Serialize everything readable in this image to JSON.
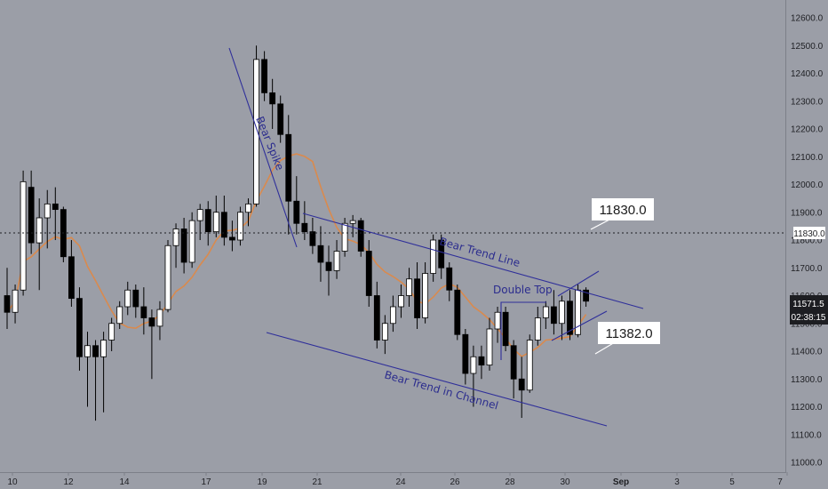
{
  "chart_data": {
    "type": "candlestick",
    "y_axis": {
      "range": [
        11000,
        12650
      ],
      "ticks": [
        "11000.0",
        "11100.0",
        "11200.0",
        "11300.0",
        "11400.0",
        "11500.0",
        "11600.0",
        "11700.0",
        "11800.0",
        "11900.0",
        "12000.0",
        "12100.0",
        "12200.0",
        "12300.0",
        "12400.0",
        "12500.0",
        "12600.0"
      ]
    },
    "x_axis": {
      "ticks": [
        "10",
        "12",
        "14",
        "17",
        "19",
        "21",
        "24",
        "26",
        "28",
        "30",
        "Sep",
        "3",
        "5",
        "7"
      ]
    },
    "grid": false,
    "moving_average_color": "#d98a4e",
    "candle_up_color": "#ffffff",
    "candle_down_color": "#000000",
    "candles": [
      [
        11600,
        11700,
        11480,
        11540
      ],
      [
        11540,
        11640,
        11500,
        11620
      ],
      [
        11620,
        12050,
        11600,
        12010
      ],
      [
        11990,
        12050,
        11750,
        11790
      ],
      [
        11790,
        11950,
        11620,
        11880
      ],
      [
        11880,
        11980,
        11770,
        11930
      ],
      [
        11930,
        11990,
        11800,
        11910
      ],
      [
        11910,
        11920,
        11720,
        11740
      ],
      [
        11740,
        11800,
        11560,
        11590
      ],
      [
        11590,
        11630,
        11330,
        11380
      ],
      [
        11380,
        11470,
        11200,
        11420
      ],
      [
        11420,
        11440,
        11150,
        11380
      ],
      [
        11380,
        11470,
        11180,
        11440
      ],
      [
        11440,
        11520,
        11400,
        11500
      ],
      [
        11500,
        11580,
        11480,
        11560
      ],
      [
        11560,
        11650,
        11530,
        11620
      ],
      [
        11620,
        11640,
        11520,
        11560
      ],
      [
        11560,
        11630,
        11460,
        11520
      ],
      [
        11520,
        11550,
        11300,
        11490
      ],
      [
        11490,
        11580,
        11440,
        11550
      ],
      [
        11550,
        11800,
        11540,
        11780
      ],
      [
        11780,
        11860,
        11700,
        11840
      ],
      [
        11840,
        11880,
        11680,
        11720
      ],
      [
        11720,
        11900,
        11700,
        11870
      ],
      [
        11870,
        11930,
        11800,
        11910
      ],
      [
        11910,
        11940,
        11780,
        11830
      ],
      [
        11830,
        11960,
        11810,
        11900
      ],
      [
        11900,
        11960,
        11780,
        11810
      ],
      [
        11810,
        11870,
        11760,
        11800
      ],
      [
        11800,
        11920,
        11780,
        11900
      ],
      [
        11900,
        11950,
        11850,
        11930
      ],
      [
        11930,
        12500,
        11920,
        12450
      ],
      [
        12450,
        12480,
        12300,
        12330
      ],
      [
        12330,
        12380,
        12200,
        12290
      ],
      [
        12290,
        12320,
        12150,
        12180
      ],
      [
        12180,
        12250,
        11820,
        11940
      ],
      [
        11940,
        12030,
        11820,
        11860
      ],
      [
        11860,
        11940,
        11800,
        11830
      ],
      [
        11830,
        11880,
        11750,
        11780
      ],
      [
        11780,
        11850,
        11650,
        11720
      ],
      [
        11720,
        11780,
        11600,
        11690
      ],
      [
        11690,
        11800,
        11660,
        11760
      ],
      [
        11760,
        11880,
        11740,
        11860
      ],
      [
        11860,
        11890,
        11810,
        11870
      ],
      [
        11870,
        11880,
        11740,
        11760
      ],
      [
        11760,
        11800,
        11560,
        11600
      ],
      [
        11600,
        11650,
        11410,
        11440
      ],
      [
        11440,
        11530,
        11390,
        11500
      ],
      [
        11500,
        11600,
        11470,
        11560
      ],
      [
        11560,
        11640,
        11520,
        11600
      ],
      [
        11600,
        11700,
        11560,
        11660
      ],
      [
        11660,
        11720,
        11480,
        11520
      ],
      [
        11520,
        11720,
        11500,
        11680
      ],
      [
        11680,
        11820,
        11650,
        11800
      ],
      [
        11800,
        11820,
        11660,
        11700
      ],
      [
        11700,
        11720,
        11580,
        11620
      ],
      [
        11620,
        11640,
        11440,
        11460
      ],
      [
        11460,
        11480,
        11280,
        11320
      ],
      [
        11320,
        11420,
        11200,
        11380
      ],
      [
        11380,
        11420,
        11300,
        11350
      ],
      [
        11350,
        11520,
        11330,
        11480
      ],
      [
        11480,
        11560,
        11430,
        11540
      ],
      [
        11540,
        11560,
        11400,
        11420
      ],
      [
        11420,
        11440,
        11230,
        11300
      ],
      [
        11300,
        11380,
        11160,
        11260
      ],
      [
        11260,
        11460,
        11250,
        11440
      ],
      [
        11440,
        11560,
        11420,
        11520
      ],
      [
        11520,
        11580,
        11480,
        11560
      ],
      [
        11560,
        11620,
        11460,
        11500
      ],
      [
        11500,
        11600,
        11440,
        11580
      ],
      [
        11580,
        11620,
        11440,
        11460
      ],
      [
        11460,
        11640,
        11450,
        11620
      ],
      [
        11620,
        11630,
        11560,
        11580
      ]
    ],
    "callouts": [
      {
        "label": "11830.0"
      },
      {
        "label": "11382.0"
      }
    ],
    "annotations": [
      {
        "label": "Bear Spike"
      },
      {
        "label": "Bear Trend Line"
      },
      {
        "label": "Double Top"
      },
      {
        "label": "Bear Trend in Channel"
      }
    ],
    "price_labels": {
      "horizontal_line": "11830.0",
      "current_price": "11571.5",
      "countdown": "02:38:15"
    }
  }
}
